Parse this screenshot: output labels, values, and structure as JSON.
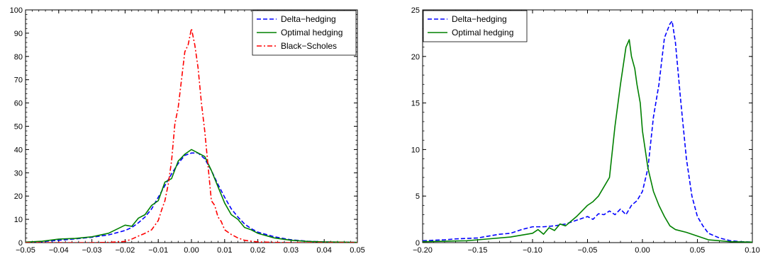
{
  "chart_data": [
    {
      "type": "line",
      "title": "",
      "xlabel": "",
      "ylabel": "",
      "xlim": [
        -0.05,
        0.05
      ],
      "ylim": [
        0,
        100
      ],
      "xticks": [
        -0.05,
        -0.04,
        -0.03,
        -0.02,
        -0.01,
        0.0,
        0.01,
        0.02,
        0.03,
        0.04,
        0.05
      ],
      "xtick_labels": [
        "−0.05",
        "−0.04",
        "−0.03",
        "−0.02",
        "−0.01",
        "0.00",
        "0.01",
        "0.02",
        "0.03",
        "0.04",
        "0.05"
      ],
      "yticks": [
        0,
        10,
        20,
        30,
        40,
        50,
        60,
        70,
        80,
        90,
        100
      ],
      "ytick_labels": [
        "0",
        "10",
        "20",
        "30",
        "40",
        "50",
        "60",
        "70",
        "80",
        "90",
        "100"
      ],
      "grid": false,
      "legend_position": "top-right",
      "series": [
        {
          "name": "Delta−hedging",
          "color": "#0000ff",
          "dash": "dashed",
          "x": [
            -0.05,
            -0.045,
            -0.04,
            -0.035,
            -0.03,
            -0.025,
            -0.02,
            -0.018,
            -0.016,
            -0.014,
            -0.012,
            -0.01,
            -0.008,
            -0.006,
            -0.004,
            -0.002,
            0.0,
            0.002,
            0.004,
            0.006,
            0.008,
            0.01,
            0.012,
            0.014,
            0.016,
            0.018,
            0.02,
            0.025,
            0.03,
            0.035,
            0.04,
            0.045,
            0.05
          ],
          "y": [
            0.2,
            0.4,
            1.0,
            1.6,
            2.3,
            3.3,
            5.2,
            6.5,
            8.5,
            11.0,
            14.5,
            19.5,
            24.5,
            29.5,
            34.0,
            37.5,
            38.5,
            38.5,
            36.0,
            31.0,
            25.0,
            19.5,
            14.5,
            11.0,
            8.0,
            6.0,
            4.5,
            2.5,
            1.2,
            0.6,
            0.3,
            0.2,
            0.1
          ]
        },
        {
          "name": "Optimal hedging",
          "color": "#008000",
          "dash": "solid",
          "x": [
            -0.05,
            -0.045,
            -0.04,
            -0.035,
            -0.03,
            -0.025,
            -0.02,
            -0.018,
            -0.016,
            -0.014,
            -0.012,
            -0.01,
            -0.008,
            -0.006,
            -0.004,
            -0.002,
            0.0,
            0.002,
            0.004,
            0.006,
            0.008,
            0.01,
            0.012,
            0.014,
            0.016,
            0.018,
            0.02,
            0.025,
            0.03,
            0.035,
            0.04,
            0.045,
            0.05
          ],
          "y": [
            0.2,
            0.6,
            1.5,
            1.8,
            2.5,
            4.0,
            7.5,
            7.0,
            10.5,
            12.0,
            16.0,
            18.0,
            26.0,
            27.5,
            35.0,
            38.0,
            40.0,
            38.5,
            37.0,
            31.0,
            24.0,
            17.0,
            12.0,
            10.0,
            6.5,
            5.5,
            4.0,
            2.0,
            1.0,
            0.5,
            0.3,
            0.2,
            0.1
          ]
        },
        {
          "name": "Black−Scholes",
          "color": "#ff0000",
          "dash": "dashdot",
          "x": [
            -0.05,
            -0.03,
            -0.025,
            -0.02,
            -0.018,
            -0.016,
            -0.014,
            -0.012,
            -0.01,
            -0.009,
            -0.008,
            -0.007,
            -0.006,
            -0.005,
            -0.004,
            -0.003,
            -0.002,
            -0.001,
            0.0,
            0.001,
            0.002,
            0.003,
            0.004,
            0.005,
            0.006,
            0.007,
            0.008,
            0.009,
            0.01,
            0.012,
            0.014,
            0.016,
            0.018,
            0.02,
            0.025,
            0.03,
            0.05
          ],
          "y": [
            0.0,
            0.0,
            0.1,
            0.5,
            1.5,
            2.8,
            4.0,
            5.5,
            9.5,
            14.0,
            18.0,
            25.0,
            35.0,
            51.0,
            58.0,
            70.0,
            82.0,
            85.0,
            92.0,
            85.0,
            75.0,
            60.0,
            48.0,
            33.0,
            18.0,
            16.0,
            11.0,
            9.0,
            5.5,
            3.5,
            2.0,
            1.0,
            0.6,
            0.3,
            0.1,
            0.0,
            0.0
          ]
        }
      ]
    },
    {
      "type": "line",
      "title": "",
      "xlabel": "",
      "ylabel": "",
      "xlim": [
        -0.2,
        0.1
      ],
      "ylim": [
        0,
        25
      ],
      "xticks": [
        -0.2,
        -0.15,
        -0.1,
        -0.05,
        0.0,
        0.05,
        0.1
      ],
      "xtick_labels": [
        "−0.20",
        "−0.15",
        "−0.10",
        "−0.05",
        "0.00",
        "0.05",
        "0.10"
      ],
      "yticks": [
        0,
        5,
        10,
        15,
        20,
        25
      ],
      "ytick_labels": [
        "0",
        "5",
        "10",
        "15",
        "20",
        "25"
      ],
      "grid": false,
      "legend_position": "top-left",
      "series": [
        {
          "name": "Delta−hedging",
          "color": "#0000ff",
          "dash": "dashed",
          "x": [
            -0.2,
            -0.19,
            -0.18,
            -0.17,
            -0.16,
            -0.15,
            -0.14,
            -0.13,
            -0.12,
            -0.11,
            -0.1,
            -0.09,
            -0.08,
            -0.07,
            -0.06,
            -0.055,
            -0.05,
            -0.045,
            -0.04,
            -0.035,
            -0.03,
            -0.025,
            -0.02,
            -0.015,
            -0.01,
            -0.005,
            0.0,
            0.005,
            0.01,
            0.015,
            0.02,
            0.025,
            0.027,
            0.03,
            0.035,
            0.04,
            0.045,
            0.05,
            0.055,
            0.06,
            0.07,
            0.08,
            0.09,
            0.1
          ],
          "y": [
            0.2,
            0.25,
            0.3,
            0.4,
            0.45,
            0.5,
            0.7,
            0.9,
            1.0,
            1.4,
            1.7,
            1.7,
            1.8,
            2.0,
            2.4,
            2.6,
            2.8,
            2.5,
            3.1,
            3.0,
            3.4,
            3.0,
            3.6,
            3.0,
            4.0,
            4.5,
            5.5,
            8.0,
            13.5,
            17.0,
            22.0,
            23.5,
            23.8,
            21.5,
            15.0,
            9.0,
            5.0,
            2.8,
            1.8,
            1.0,
            0.5,
            0.2,
            0.1,
            0.05
          ]
        },
        {
          "name": "Optimal hedging",
          "color": "#008000",
          "dash": "solid",
          "x": [
            -0.2,
            -0.18,
            -0.16,
            -0.14,
            -0.12,
            -0.1,
            -0.095,
            -0.09,
            -0.085,
            -0.08,
            -0.075,
            -0.07,
            -0.065,
            -0.06,
            -0.055,
            -0.05,
            -0.045,
            -0.04,
            -0.035,
            -0.03,
            -0.025,
            -0.02,
            -0.015,
            -0.012,
            -0.01,
            -0.007,
            -0.005,
            -0.002,
            0.0,
            0.005,
            0.01,
            0.015,
            0.02,
            0.025,
            0.03,
            0.04,
            0.05,
            0.06,
            0.08,
            0.1
          ],
          "y": [
            0.1,
            0.15,
            0.2,
            0.4,
            0.6,
            1.0,
            1.4,
            0.9,
            1.6,
            1.3,
            2.0,
            1.8,
            2.3,
            2.8,
            3.4,
            4.0,
            4.4,
            5.0,
            6.0,
            7.0,
            12.5,
            17.0,
            21.0,
            21.8,
            20.0,
            18.7,
            17.0,
            15.0,
            12.0,
            8.0,
            5.5,
            4.0,
            2.8,
            1.8,
            1.4,
            1.1,
            0.7,
            0.3,
            0.1,
            0.05
          ]
        }
      ]
    }
  ]
}
